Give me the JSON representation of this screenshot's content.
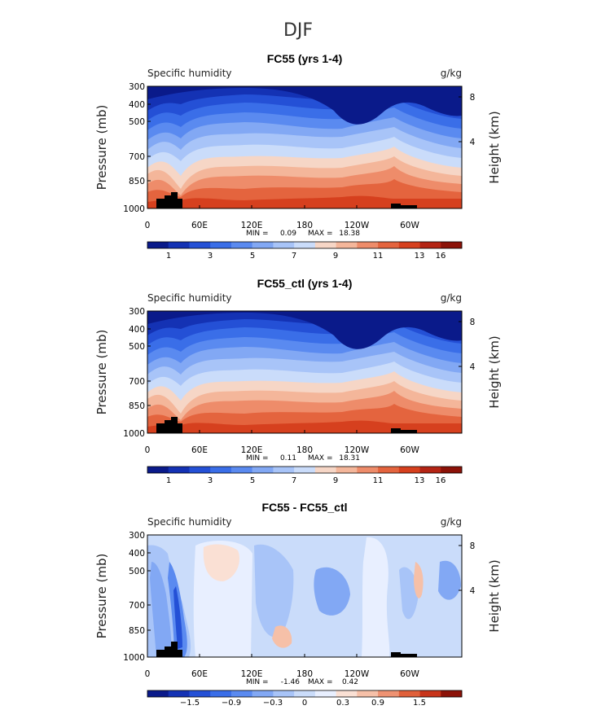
{
  "figure_title": "DJF",
  "chart_data": [
    {
      "type": "heatmap",
      "title": "FC55 (yrs 1-4)",
      "variable": "Specific humidity",
      "units": "g/kg",
      "ylabel": "Pressure (mb)",
      "y2label": "Height (km)",
      "x_ticks": [
        "0",
        "60E",
        "120E",
        "180",
        "120W",
        "60W"
      ],
      "y_ticks": [
        "300",
        "400",
        "500",
        "700",
        "850",
        "1000"
      ],
      "y2_ticks": [
        "8",
        "4"
      ],
      "min_label": "MIN =",
      "min_value": "0.09",
      "max_label": "MAX =",
      "max_value": "18.38",
      "colorbar_labels": [
        "1",
        "3",
        "5",
        "7",
        "9",
        "11",
        "13",
        "16"
      ],
      "ylim": [
        1000,
        300
      ],
      "xlim": [
        0,
        360
      ]
    },
    {
      "type": "heatmap",
      "title": "FC55_ctl (yrs 1-4)",
      "variable": "Specific humidity",
      "units": "g/kg",
      "ylabel": "Pressure (mb)",
      "y2label": "Height (km)",
      "x_ticks": [
        "0",
        "60E",
        "120E",
        "180",
        "120W",
        "60W"
      ],
      "y_ticks": [
        "300",
        "400",
        "500",
        "700",
        "850",
        "1000"
      ],
      "y2_ticks": [
        "8",
        "4"
      ],
      "min_label": "MIN =",
      "min_value": "0.11",
      "max_label": "MAX =",
      "max_value": "18.31",
      "colorbar_labels": [
        "1",
        "3",
        "5",
        "7",
        "9",
        "11",
        "13",
        "16"
      ],
      "ylim": [
        1000,
        300
      ],
      "xlim": [
        0,
        360
      ]
    },
    {
      "type": "heatmap",
      "title": "FC55 - FC55_ctl",
      "variable": "Specific humidity",
      "units": "g/kg",
      "ylabel": "Pressure (mb)",
      "y2label": "Height (km)",
      "x_ticks": [
        "0",
        "60E",
        "120E",
        "180",
        "120W",
        "60W"
      ],
      "y_ticks": [
        "300",
        "400",
        "500",
        "700",
        "850",
        "1000"
      ],
      "y2_ticks": [
        "8",
        "4"
      ],
      "min_label": "MIN =",
      "min_value": "-1.46",
      "max_label": "MAX =",
      "max_value": "0.42",
      "colorbar_labels": [
        "−1.5",
        "−0.9",
        "−0.3",
        "0",
        "0.3",
        "0.9",
        "1.5"
      ],
      "ylim": [
        1000,
        300
      ],
      "xlim": [
        0,
        360
      ]
    }
  ],
  "colors": {
    "full_field": [
      "#0a1a8a",
      "#1432b4",
      "#2450d6",
      "#3a6ee8",
      "#5a8af0",
      "#82a8f4",
      "#a8c4f8",
      "#cadcfa",
      "#f6d6c6",
      "#f4b69a",
      "#ee8c6a",
      "#e4643e",
      "#d6401e",
      "#b42414",
      "#8c1208"
    ],
    "difference": [
      "#0a1a8a",
      "#1432b4",
      "#2450d6",
      "#3a6ee8",
      "#5a8af0",
      "#82a8f4",
      "#a8c4f8",
      "#cadcfa",
      "#e8efff",
      "#fae0d4",
      "#f6c0a8",
      "#ee9272",
      "#e0603a",
      "#c8341a",
      "#8c1208"
    ],
    "topography": "#000000"
  }
}
